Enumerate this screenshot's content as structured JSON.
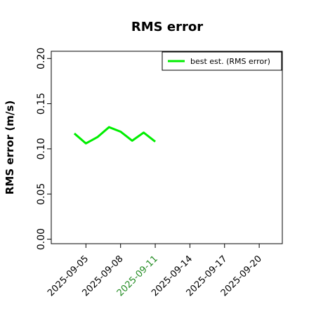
{
  "chart_data": {
    "type": "line",
    "title": "RMS error",
    "y_label": "RMS error (m/s)",
    "x": [
      "2025-09-04",
      "2025-09-05",
      "2025-09-06",
      "2025-09-07",
      "2025-09-08",
      "2025-09-09",
      "2025-09-10",
      "2025-09-11"
    ],
    "series": [
      {
        "name": "best est. (RMS error)",
        "color": "#00ee00",
        "values": [
          0.117,
          0.106,
          0.113,
          0.124,
          0.119,
          0.109,
          0.118,
          0.108
        ]
      }
    ],
    "xlim": [
      "2025-09-02",
      "2025-09-22"
    ],
    "xticks": [
      "2025-09-05",
      "2025-09-08",
      "2025-09-11",
      "2025-09-14",
      "2025-09-17",
      "2025-09-20"
    ],
    "highlight_xtick": "2025-09-11",
    "highlight_color": "#228b22",
    "ylim": [
      -0.005,
      0.208
    ],
    "yticks": [
      {
        "value": 0,
        "label": "0.00"
      },
      {
        "value": 0.05,
        "label": "0.05"
      },
      {
        "value": 0.1,
        "label": "0.10"
      },
      {
        "value": 0.15,
        "label": "0.15"
      },
      {
        "value": 0.2,
        "label": "0.20"
      }
    ],
    "legend": "upper right",
    "grid": false
  }
}
